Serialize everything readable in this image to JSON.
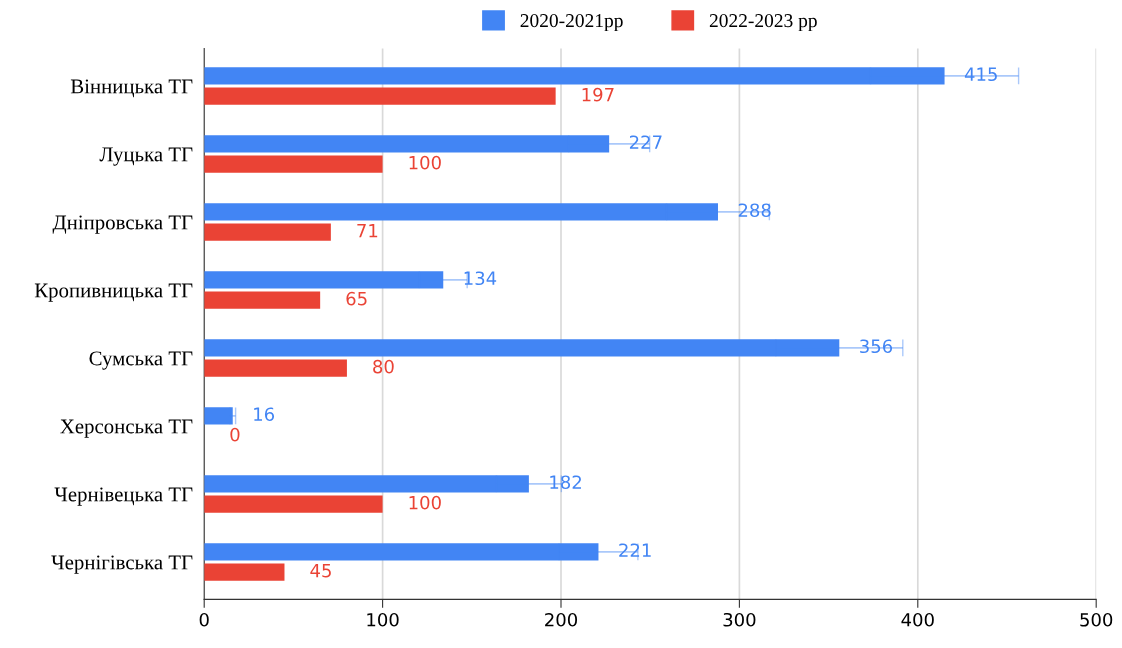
{
  "chart_data": {
    "type": "bar",
    "orientation": "horizontal",
    "categories": [
      "Вінницька ТГ",
      "Луцька ТГ",
      "Дніпровська ТГ",
      "Кропивницька ТГ",
      "Сумська ТГ",
      "Херсонська ТГ",
      "Чернівецька ТГ",
      "Чернігівська ТГ"
    ],
    "series": [
      {
        "name": "2020-2021рр",
        "color": "#4285f4",
        "values": [
          415,
          227,
          288,
          134,
          356,
          16,
          182,
          221
        ],
        "errors": [
          41.5,
          22.7,
          28.8,
          13.4,
          35.6,
          1.6,
          18.2,
          22.1
        ]
      },
      {
        "name": "2022-2023 рр",
        "color": "#ea4335",
        "values": [
          197,
          100,
          71,
          65,
          80,
          0,
          100,
          45
        ]
      }
    ],
    "xlim": [
      0,
      500
    ],
    "xticks": [
      0,
      100,
      200,
      300,
      400,
      500
    ],
    "grid": "x",
    "legend": "top",
    "data_labels": true
  }
}
